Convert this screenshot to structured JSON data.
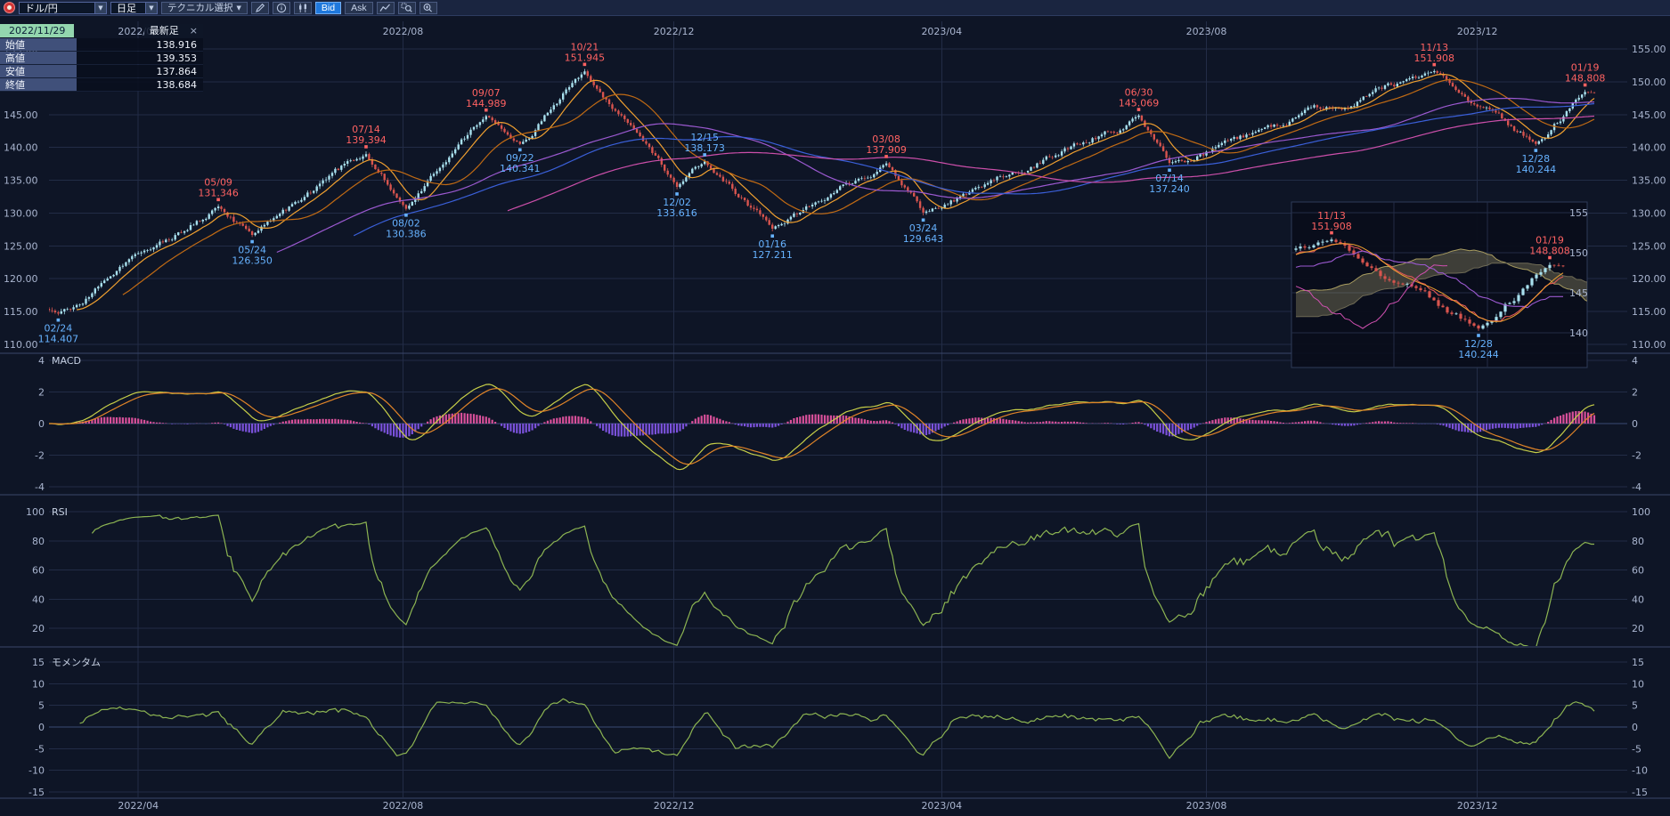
{
  "toolbar": {
    "pair_label": "ドル/円",
    "timeframe_label": "日足",
    "technical_label": "テクニカル選択",
    "bid_label": "Bid",
    "ask_label": "Ask"
  },
  "info_panel": {
    "date": "2022/11/29",
    "latest_label": "最新足",
    "close_label": "×",
    "rows": [
      {
        "label": "始値",
        "value": "138.916"
      },
      {
        "label": "高値",
        "value": "139.353"
      },
      {
        "label": "安値",
        "value": "137.864"
      },
      {
        "label": "終値",
        "value": "138.684"
      }
    ]
  },
  "chart_data": {
    "colors": {
      "background": "#0e1526",
      "grid": "#222c46",
      "grid_strong": "#3a4a74",
      "divider": "#39466a",
      "axis_text": "#a9b5cf",
      "panel_title": "#c8d2e4",
      "candle_up": "#a8e0ee",
      "candle_down": "#d8544e",
      "ann_red": "#ff6262",
      "ann_blue": "#66b2ff",
      "macd_line": "#c6ce48",
      "macd_signal": "#e08428",
      "hist_pos": "#d8509a",
      "hist_neg": "#7b52dc",
      "rsi_line": "#8cb452",
      "momentum_line": "#8cb452",
      "inset_bg": "rgba(9,13,26,0.92)",
      "inset_border": "#2e3a58",
      "cloud": "rgba(150,142,104,0.38)",
      "span_a": "#a89c60",
      "span_b": "#6e6a55",
      "tenkan": "#e05858",
      "kijun": "#9b59d0",
      "chikou": "#d050b0"
    },
    "price": {
      "type": "candlestick",
      "title": "ドル/円 日足",
      "ylim": [
        110,
        155
      ],
      "yticks": [
        155,
        150,
        145,
        140,
        135,
        130,
        125,
        120,
        115,
        110
      ],
      "start_date": "2022-02-21",
      "end_date": "2024-01-24",
      "start_price": 115.3,
      "end_price": 148.2,
      "months": [
        {
          "label": "2022/04",
          "date": "2022-04-01"
        },
        {
          "label": "2022/08",
          "date": "2022-08-01"
        },
        {
          "label": "2022/12",
          "date": "2022-12-01"
        },
        {
          "label": "2023/04",
          "date": "2023-04-01"
        },
        {
          "label": "2023/08",
          "date": "2023-08-01"
        },
        {
          "label": "2023/12",
          "date": "2023-12-01"
        }
      ],
      "annotations": [
        {
          "label": "02/24",
          "date": "2022-02-24",
          "price": 114.407,
          "kind": "low",
          "side": "below",
          "color": "blue"
        },
        {
          "label": "05/09",
          "date": "2022-05-09",
          "price": 131.346,
          "kind": "high",
          "side": "above",
          "color": "red"
        },
        {
          "label": "05/24",
          "date": "2022-05-24",
          "price": 126.35,
          "kind": "low",
          "side": "below",
          "color": "blue"
        },
        {
          "label": "07/14",
          "date": "2022-07-14",
          "price": 139.394,
          "kind": "high",
          "side": "above",
          "color": "red"
        },
        {
          "label": "08/02",
          "date": "2022-08-02",
          "price": 130.386,
          "kind": "low",
          "side": "below",
          "color": "blue"
        },
        {
          "label": "09/07",
          "date": "2022-09-07",
          "price": 144.989,
          "kind": "high",
          "side": "above",
          "color": "red"
        },
        {
          "label": "09/22",
          "date": "2022-09-22",
          "price": 140.341,
          "kind": "low",
          "side": "below",
          "color": "blue"
        },
        {
          "label": "10/21",
          "date": "2022-10-21",
          "price": 151.945,
          "kind": "high",
          "side": "above",
          "color": "red"
        },
        {
          "label": "12/02",
          "date": "2022-12-02",
          "price": 133.616,
          "kind": "low",
          "side": "below",
          "color": "blue"
        },
        {
          "label": "12/15",
          "date": "2022-12-15",
          "price": 138.173,
          "kind": "high",
          "side": "above",
          "color": "blue"
        },
        {
          "label": "01/16",
          "date": "2023-01-16",
          "price": 127.211,
          "kind": "low",
          "side": "below",
          "color": "blue"
        },
        {
          "label": "03/08",
          "date": "2023-03-08",
          "price": 137.909,
          "kind": "high",
          "side": "above",
          "color": "red"
        },
        {
          "label": "03/24",
          "date": "2023-03-24",
          "price": 129.643,
          "kind": "low",
          "side": "below",
          "color": "blue"
        },
        {
          "label": "06/30",
          "date": "2023-06-30",
          "price": 145.069,
          "kind": "high",
          "side": "above",
          "color": "red"
        },
        {
          "label": "07/14",
          "date": "2023-07-14",
          "price": 137.24,
          "kind": "low",
          "side": "below",
          "color": "blue"
        },
        {
          "label": "11/13",
          "date": "2023-11-13",
          "price": 151.908,
          "kind": "high",
          "side": "above",
          "color": "red"
        },
        {
          "label": "12/28",
          "date": "2023-12-28",
          "price": 140.244,
          "kind": "low",
          "side": "below",
          "color": "blue"
        },
        {
          "label": "01/19",
          "date": "2024-01-19",
          "price": 148.808,
          "kind": "high",
          "side": "above",
          "color": "red"
        }
      ],
      "overlays": [
        {
          "period": 10,
          "color": "#f0a030"
        },
        {
          "period": 25,
          "color": "#c06a14"
        },
        {
          "period": 75,
          "color": "#9b59d0"
        },
        {
          "period": 100,
          "color": "#3a5fd8"
        },
        {
          "period": 150,
          "color": "#cc4faa"
        }
      ]
    },
    "macd": {
      "type": "macd",
      "title": "MACD",
      "fast": 12,
      "slow": 26,
      "signal": 9,
      "ylim": [
        -4,
        4
      ],
      "yticks": [
        4,
        2,
        0,
        -2,
        -4
      ]
    },
    "rsi": {
      "type": "line",
      "title": "RSI",
      "period": 14,
      "ylim": [
        20,
        100
      ],
      "yticks": [
        100,
        80,
        60,
        40,
        20
      ]
    },
    "momentum": {
      "type": "line",
      "title": "モメンタム",
      "period": 10,
      "ylim": [
        -15,
        15
      ],
      "yticks": [
        15,
        10,
        5,
        0,
        -5,
        -10,
        -15
      ]
    },
    "inset": {
      "type": "candlestick-ichimoku",
      "start_date": "2023-11-01",
      "yticks": [
        155,
        150,
        145,
        140
      ],
      "month_dates": [
        "2023-12-01",
        "2024-01-01"
      ],
      "ichimoku": {
        "tenkan": 9,
        "kijun": 26,
        "senkou": 52,
        "shift": 26
      },
      "annotations": [
        {
          "label": "11/13",
          "date": "2023-11-13",
          "price": 151.908,
          "side": "above",
          "color": "red"
        },
        {
          "label": "01/19",
          "date": "2024-01-19",
          "price": 148.808,
          "side": "above",
          "color": "red"
        },
        {
          "label": "12/28",
          "date": "2023-12-28",
          "price": 140.244,
          "side": "below",
          "color": "blue"
        }
      ]
    }
  }
}
